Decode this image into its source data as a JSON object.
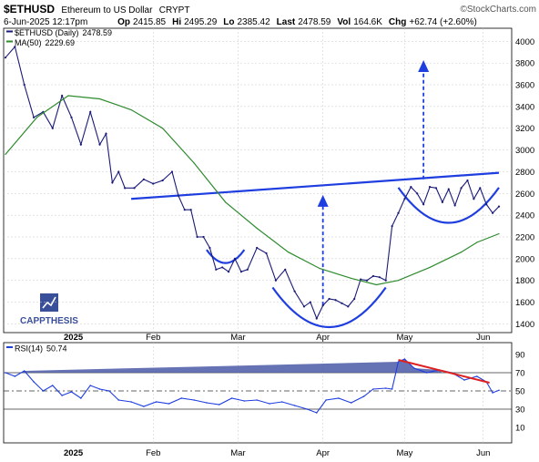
{
  "header": {
    "symbol": "$ETHUSD",
    "name": "Ethereum to US Dollar",
    "exchange": "CRYPT",
    "source": "©StockCharts.com",
    "date": "6-Jun-2025 12:17pm",
    "quote": [
      {
        "label": "Op",
        "value": "2415.85"
      },
      {
        "label": "Hi",
        "value": "2495.29"
      },
      {
        "label": "Lo",
        "value": "2385.42"
      },
      {
        "label": "Last",
        "value": "2478.59"
      },
      {
        "label": "Vol",
        "value": "164.6K"
      },
      {
        "label": "Chg",
        "value": "+62.74 (+2.60%)"
      }
    ]
  },
  "watermark": {
    "line1": "CAPP",
    "line2": "THESIS"
  },
  "colors": {
    "price": "#1a1a78",
    "ma": "#2e8b2e",
    "trend": "#1f3ee0",
    "rsi": "#1f3ee0",
    "rsi_fill": "#4a5aa8",
    "rsi_trend": "#e02020",
    "grid": "#c8c8c8"
  },
  "chart_data": [
    {
      "type": "line",
      "title": "",
      "xlabel": "",
      "ylabel": "",
      "legend": [
        {
          "name": "$ETHUSD (Daily)",
          "value": "2478.59",
          "color": "#1a1a78"
        },
        {
          "name": "MA(50)",
          "value": "2229.69",
          "color": "#2e8b2e"
        }
      ],
      "ylim": [
        1320,
        4120
      ],
      "yticks": [
        1400,
        1600,
        1800,
        2000,
        2200,
        2400,
        2600,
        2800,
        3000,
        3200,
        3400,
        3600,
        3800,
        4000
      ],
      "xtick_labels": [
        "2025",
        "Feb",
        "Mar",
        "Apr",
        "May",
        "Jun"
      ],
      "series": [
        {
          "name": "$ETHUSD (Daily)",
          "x": [
            0,
            3,
            6,
            9,
            12,
            15,
            18,
            21,
            24,
            27,
            30,
            32,
            34,
            36,
            38,
            41,
            44,
            47,
            50,
            53,
            55,
            57,
            59,
            61,
            63,
            65,
            67,
            69,
            71,
            73,
            75,
            77,
            80,
            83,
            86,
            89,
            92,
            95,
            97,
            99,
            101,
            103,
            105,
            107,
            109,
            111,
            113,
            115,
            117,
            119,
            121,
            123,
            125,
            127,
            129,
            131,
            133,
            135,
            137,
            139,
            141,
            143,
            145,
            147,
            149,
            151,
            153,
            155,
            157
          ],
          "values": [
            3850,
            3950,
            3600,
            3300,
            3350,
            3200,
            3500,
            3300,
            3050,
            3350,
            3050,
            3150,
            2700,
            2800,
            2650,
            2650,
            2730,
            2690,
            2720,
            2800,
            2580,
            2450,
            2450,
            2200,
            2200,
            2100,
            1900,
            1920,
            1880,
            2000,
            1880,
            1900,
            2100,
            2050,
            1800,
            1900,
            1700,
            1560,
            1600,
            1450,
            1570,
            1630,
            1620,
            1590,
            1560,
            1630,
            1810,
            1800,
            1840,
            1830,
            1800,
            2300,
            2420,
            2550,
            2660,
            2600,
            2500,
            2660,
            2650,
            2520,
            2640,
            2490,
            2650,
            2720,
            2550,
            2650,
            2500,
            2420,
            2480
          ]
        },
        {
          "name": "MA(50)",
          "x": [
            0,
            10,
            20,
            30,
            40,
            50,
            60,
            70,
            80,
            90,
            100,
            110,
            118,
            125,
            135,
            145,
            150,
            157
          ],
          "values": [
            2960,
            3300,
            3500,
            3470,
            3370,
            3200,
            2880,
            2520,
            2280,
            2060,
            1910,
            1820,
            1760,
            1800,
            1920,
            2060,
            2150,
            2229.69
          ]
        }
      ],
      "annotations": {
        "neckline": {
          "x": [
            40,
            157
          ],
          "values": [
            2550,
            2790
          ]
        },
        "targets": [
          {
            "x": 101,
            "from": 1570,
            "to": 2570
          },
          {
            "x": 133,
            "from": 2730,
            "to": 3810
          }
        ],
        "arcs": [
          {
            "x": [
              64,
              76
            ],
            "bottom": 1960
          },
          {
            "x": [
              85,
              121
            ],
            "bottom": 1370
          },
          {
            "x": [
              125,
              157
            ],
            "bottom": 2330
          }
        ]
      }
    },
    {
      "type": "line",
      "title": "",
      "legend": [
        {
          "name": "RSI(14)",
          "value": "50.74",
          "color": "#1f3ee0"
        }
      ],
      "ylim": [
        0,
        100
      ],
      "yticks": [
        10,
        30,
        50,
        70,
        90
      ],
      "reference_lines": [
        30,
        50,
        70
      ],
      "xtick_labels": [
        "2025",
        "Feb",
        "Mar",
        "Apr",
        "May",
        "Jun"
      ],
      "series": [
        {
          "name": "RSI(14)",
          "x": [
            0,
            3,
            6,
            9,
            12,
            15,
            18,
            21,
            24,
            27,
            30,
            33,
            36,
            40,
            44,
            48,
            52,
            56,
            60,
            64,
            68,
            72,
            76,
            80,
            84,
            88,
            92,
            96,
            99,
            102,
            106,
            110,
            114,
            117,
            121,
            123,
            125,
            127,
            130,
            134,
            138,
            142,
            146,
            150,
            153,
            155,
            157
          ],
          "values": [
            70,
            66,
            72,
            60,
            50,
            56,
            45,
            49,
            42,
            56,
            52,
            50,
            40,
            38,
            33,
            38,
            36,
            42,
            40,
            37,
            35,
            42,
            39,
            40,
            36,
            38,
            34,
            30,
            26,
            40,
            42,
            37,
            44,
            52,
            53,
            52,
            82,
            85,
            75,
            70,
            73,
            70,
            62,
            66,
            60,
            48,
            50.74
          ]
        }
      ],
      "annotations": {
        "trend": {
          "x": [
            125,
            154
          ],
          "values": [
            84,
            59
          ]
        }
      }
    }
  ]
}
